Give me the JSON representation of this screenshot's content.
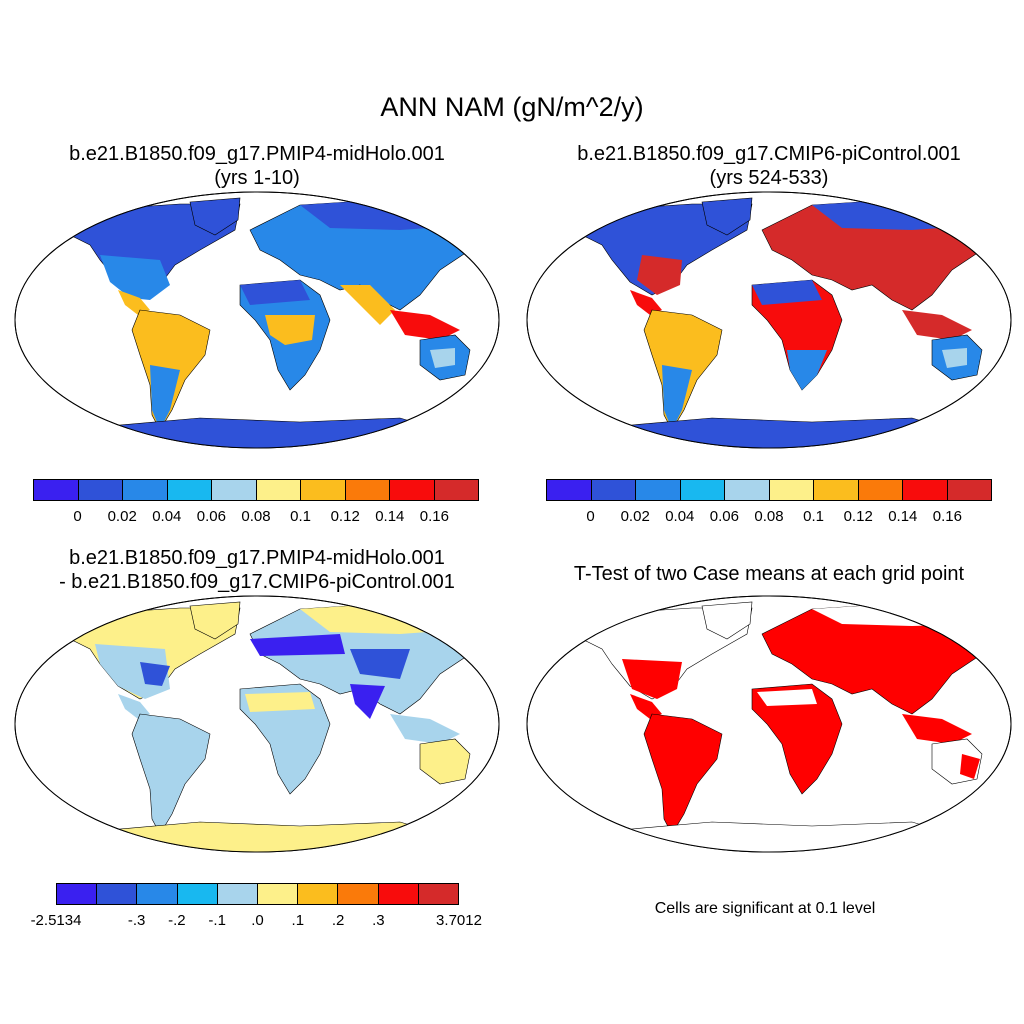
{
  "title": "ANN NAM (gN/m^2/y)",
  "colors": [
    "#3a20f0",
    "#2f52d8",
    "#2888e8",
    "#18b8f0",
    "#a8d4ec",
    "#fdf08a",
    "#fbbd1e",
    "#fa7a0a",
    "#f80c0c",
    "#d52a2a"
  ],
  "panels": {
    "top_left": {
      "title_line1": "b.e21.B1850.f09_g17.PMIP4-midHolo.001",
      "title_line2": "(yrs 1-10)",
      "colorbar_labels": [
        "0",
        "0.02",
        "0.04",
        "0.06",
        "0.08",
        "0.1",
        "0.12",
        "0.14",
        "0.16"
      ]
    },
    "top_right": {
      "title_line1": "b.e21.B1850.f09_g17.CMIP6-piControl.001",
      "title_line2": "(yrs 524-533)",
      "colorbar_labels": [
        "0",
        "0.02",
        "0.04",
        "0.06",
        "0.08",
        "0.1",
        "0.12",
        "0.14",
        "0.16"
      ]
    },
    "bottom_left": {
      "title_line1": "b.e21.B1850.f09_g17.PMIP4-midHolo.001",
      "title_line2": "- b.e21.B1850.f09_g17.CMIP6-piControl.001",
      "colorbar_labels": [
        "-2.5134",
        "-.3",
        "-.2",
        "-.1",
        ".0",
        ".1",
        ".2",
        ".3",
        "3.7012"
      ]
    },
    "bottom_right": {
      "title": "T-Test of two Case means at each grid point",
      "note": "Cells are significant at 0.1 level",
      "color": "#ff0000"
    }
  }
}
